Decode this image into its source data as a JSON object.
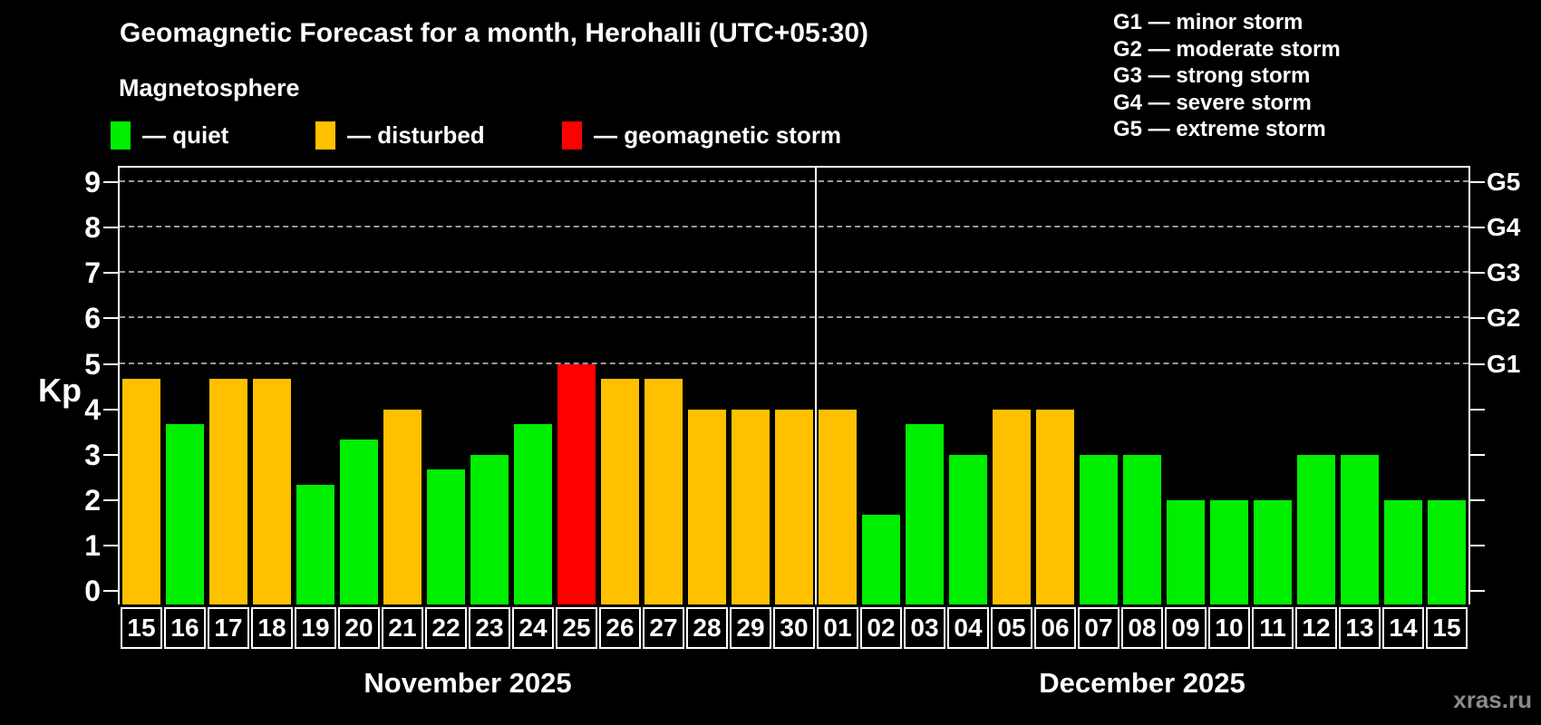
{
  "header": {
    "title": "Geomagnetic Forecast for a month, Herohalli (UTC+05:30)",
    "subtitle": "Magnetosphere"
  },
  "legend": [
    {
      "key": "quiet",
      "label": "— quiet"
    },
    {
      "key": "disturbed",
      "label": "— disturbed"
    },
    {
      "key": "storm",
      "label": "— geomagnetic storm"
    }
  ],
  "g_legend": [
    "G1 — minor storm",
    "G2 — moderate storm",
    "G3 — strong storm",
    "G4 — severe storm",
    "G5 — extreme storm"
  ],
  "watermark": "xras.ru",
  "chart_data": {
    "type": "bar",
    "title": "Geomagnetic Forecast for a month, Herohalli (UTC+05:30)",
    "ylabel": "Kp",
    "ylim": [
      0,
      9
    ],
    "y_ticks": [
      0,
      1,
      2,
      3,
      4,
      5,
      6,
      7,
      8,
      9
    ],
    "gridline_kps": [
      5,
      6,
      7,
      8,
      9
    ],
    "grid": "dashed horizontal at Kp 5-9 only",
    "legend_position": "top-left",
    "right_axis": [
      {
        "label": "G1",
        "kp": 5
      },
      {
        "label": "G2",
        "kp": 6
      },
      {
        "label": "G3",
        "kp": 7
      },
      {
        "label": "G4",
        "kp": 8
      },
      {
        "label": "G5",
        "kp": 9
      }
    ],
    "status_colors": {
      "quiet": "#00ee00",
      "disturbed": "#ffc000",
      "storm": "#ff0000"
    },
    "months": [
      {
        "label": "November 2025",
        "days": [
          {
            "day": "15",
            "kp": 4.67,
            "status": "disturbed"
          },
          {
            "day": "16",
            "kp": 3.67,
            "status": "quiet"
          },
          {
            "day": "17",
            "kp": 4.67,
            "status": "disturbed"
          },
          {
            "day": "18",
            "kp": 4.67,
            "status": "disturbed"
          },
          {
            "day": "19",
            "kp": 2.33,
            "status": "quiet"
          },
          {
            "day": "20",
            "kp": 3.33,
            "status": "quiet"
          },
          {
            "day": "21",
            "kp": 4.0,
            "status": "disturbed"
          },
          {
            "day": "22",
            "kp": 2.67,
            "status": "quiet"
          },
          {
            "day": "23",
            "kp": 3.0,
            "status": "quiet"
          },
          {
            "day": "24",
            "kp": 3.67,
            "status": "quiet"
          },
          {
            "day": "25",
            "kp": 5.0,
            "status": "storm"
          },
          {
            "day": "26",
            "kp": 4.67,
            "status": "disturbed"
          },
          {
            "day": "27",
            "kp": 4.67,
            "status": "disturbed"
          },
          {
            "day": "28",
            "kp": 4.0,
            "status": "disturbed"
          },
          {
            "day": "29",
            "kp": 4.0,
            "status": "disturbed"
          },
          {
            "day": "30",
            "kp": 4.0,
            "status": "disturbed"
          }
        ]
      },
      {
        "label": "December 2025",
        "days": [
          {
            "day": "01",
            "kp": 4.0,
            "status": "disturbed"
          },
          {
            "day": "02",
            "kp": 1.67,
            "status": "quiet"
          },
          {
            "day": "03",
            "kp": 3.67,
            "status": "quiet"
          },
          {
            "day": "04",
            "kp": 3.0,
            "status": "quiet"
          },
          {
            "day": "05",
            "kp": 4.0,
            "status": "disturbed"
          },
          {
            "day": "06",
            "kp": 4.0,
            "status": "disturbed"
          },
          {
            "day": "07",
            "kp": 3.0,
            "status": "quiet"
          },
          {
            "day": "08",
            "kp": 3.0,
            "status": "quiet"
          },
          {
            "day": "09",
            "kp": 2.0,
            "status": "quiet"
          },
          {
            "day": "10",
            "kp": 2.0,
            "status": "quiet"
          },
          {
            "day": "11",
            "kp": 2.0,
            "status": "quiet"
          },
          {
            "day": "12",
            "kp": 3.0,
            "status": "quiet"
          },
          {
            "day": "13",
            "kp": 3.0,
            "status": "quiet"
          },
          {
            "day": "14",
            "kp": 2.0,
            "status": "quiet"
          },
          {
            "day": "15",
            "kp": 2.0,
            "status": "quiet"
          }
        ]
      }
    ]
  }
}
